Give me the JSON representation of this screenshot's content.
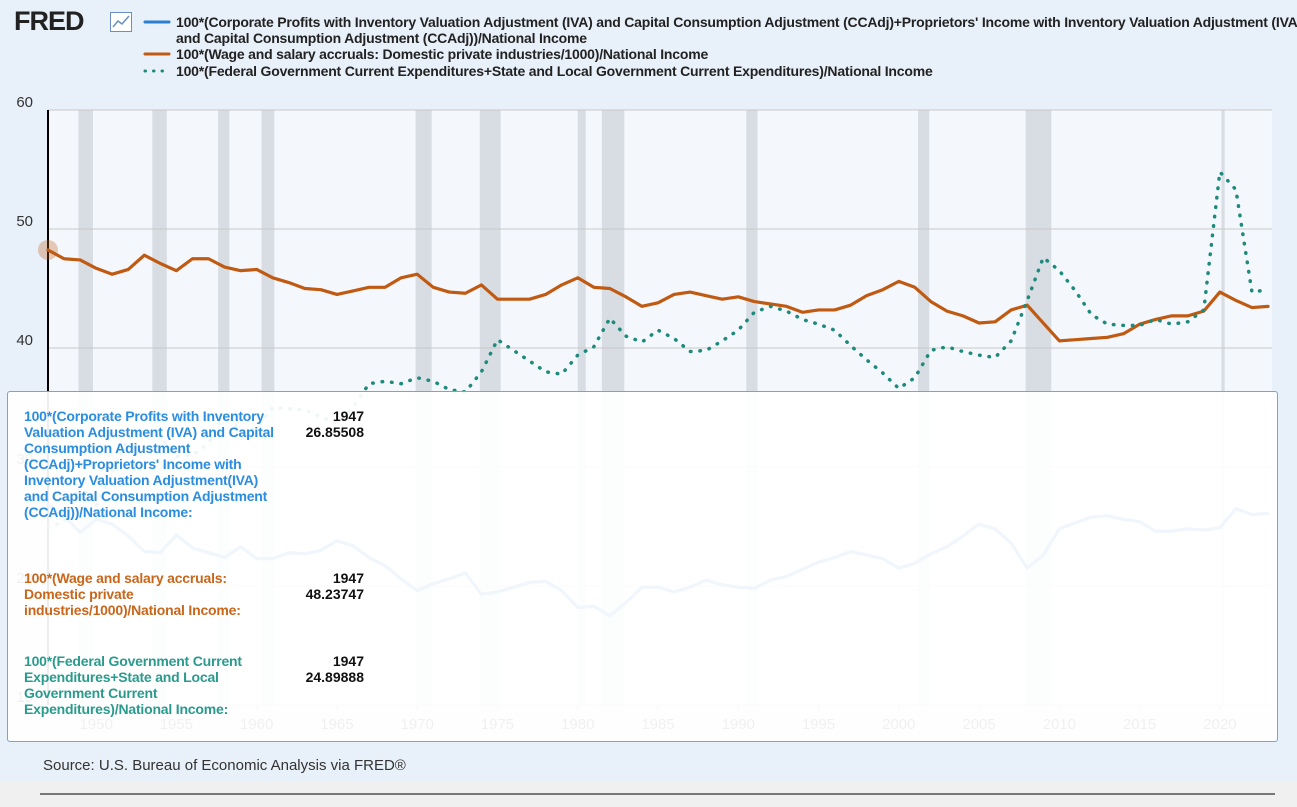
{
  "logo": "FRED",
  "source": "Source: U.S. Bureau of Economic Analysis via FRED®",
  "chart_data": {
    "type": "line",
    "x": [
      1947,
      1948,
      1949,
      1950,
      1951,
      1952,
      1953,
      1954,
      1955,
      1956,
      1957,
      1958,
      1959,
      1960,
      1961,
      1962,
      1963,
      1964,
      1965,
      1966,
      1967,
      1968,
      1969,
      1970,
      1971,
      1972,
      1973,
      1974,
      1975,
      1976,
      1977,
      1978,
      1979,
      1980,
      1981,
      1982,
      1983,
      1984,
      1985,
      1986,
      1987,
      1988,
      1989,
      1990,
      1991,
      1992,
      1993,
      1994,
      1995,
      1996,
      1997,
      1998,
      1999,
      2000,
      2001,
      2002,
      2003,
      2004,
      2005,
      2006,
      2007,
      2008,
      2009,
      2010,
      2011,
      2012,
      2013,
      2014,
      2015,
      2016,
      2017,
      2018,
      2019,
      2020,
      2021,
      2022,
      2023
    ],
    "series": [
      {
        "name": "100*(Corporate Profits with Inventory Valuation Adjustment (IVA) and Capital Consumption Adjustment (CCAdj)+Proprietors' Income with Inventory Valuation Adjustment (IVA) and Capital Consumption Adjustment (CCAdj))/National Income",
        "color": "#2a7fd4",
        "style": "solid",
        "values": [
          26.85508,
          25.9,
          24.5,
          25.6,
          25.2,
          24.2,
          22.9,
          22.8,
          24.3,
          23.2,
          22.8,
          22.4,
          23.3,
          22.3,
          22.3,
          22.8,
          22.7,
          23.0,
          23.8,
          23.4,
          22.4,
          21.7,
          20.6,
          19.6,
          20.2,
          20.6,
          21.1,
          19.3,
          19.5,
          19.9,
          20.3,
          20.4,
          19.6,
          18.2,
          18.3,
          17.5,
          18.6,
          19.9,
          19.9,
          19.5,
          19.9,
          20.5,
          20.1,
          19.9,
          19.8,
          20.5,
          20.8,
          21.4,
          22.0,
          22.4,
          22.9,
          22.6,
          22.3,
          21.5,
          21.9,
          22.7,
          23.3,
          24.2,
          25.2,
          24.8,
          23.6,
          21.5,
          22.6,
          24.8,
          25.3,
          25.8,
          25.9,
          25.6,
          25.4,
          24.6,
          24.6,
          24.8,
          24.7,
          24.9,
          26.5,
          26.0,
          26.1
        ]
      },
      {
        "name": "100*(Wage and salary accruals: Domestic private industries/1000)/National Income",
        "color": "#c05a12",
        "style": "solid",
        "values": [
          48.23747,
          47.5,
          47.4,
          46.7,
          46.2,
          46.6,
          47.8,
          47.1,
          46.5,
          47.5,
          47.5,
          46.8,
          46.5,
          46.6,
          45.9,
          45.5,
          45.0,
          44.9,
          44.5,
          44.8,
          45.1,
          45.1,
          45.9,
          46.2,
          45.1,
          44.7,
          44.6,
          45.3,
          44.1,
          44.1,
          44.1,
          44.5,
          45.3,
          45.9,
          45.1,
          45.0,
          44.3,
          43.5,
          43.8,
          44.5,
          44.7,
          44.4,
          44.1,
          44.3,
          43.9,
          43.7,
          43.5,
          43.0,
          43.2,
          43.2,
          43.6,
          44.4,
          44.9,
          45.6,
          45.1,
          43.9,
          43.1,
          42.7,
          42.1,
          42.2,
          43.2,
          43.6,
          42.1,
          40.6,
          40.7,
          40.8,
          40.9,
          41.2,
          42.0,
          42.4,
          42.7,
          42.7,
          43.1,
          44.7,
          44.0,
          43.4,
          43.5
        ]
      },
      {
        "name": "100*(Federal Government Current Expenditures+State and Local Government Current Expenditures)/National Income",
        "color": "#1e8a7c",
        "style": "dotted",
        "values": [
          24.89888,
          25.4,
          28.5,
          26.7,
          29.6,
          32.4,
          32.8,
          32.5,
          30.9,
          31.0,
          32.0,
          34.5,
          33.0,
          33.3,
          35.0,
          34.9,
          34.8,
          34.2,
          33.7,
          35.0,
          37.0,
          37.2,
          37.0,
          37.5,
          37.2,
          36.5,
          36.3,
          38.0,
          40.7,
          39.8,
          38.9,
          38.0,
          37.8,
          39.4,
          40.1,
          42.5,
          41.0,
          40.5,
          41.5,
          40.8,
          39.7,
          39.8,
          40.6,
          41.5,
          43.0,
          43.5,
          43.1,
          42.4,
          42.0,
          41.5,
          40.2,
          39.0,
          37.9,
          36.6,
          37.5,
          39.8,
          40.1,
          39.7,
          39.4,
          39.2,
          40.6,
          44.0,
          47.6,
          46.5,
          44.8,
          42.8,
          42.0,
          41.9,
          41.9,
          42.4,
          42.0,
          42.2,
          43.2,
          54.8,
          53.3,
          44.7,
          44.9
        ]
      }
    ],
    "xlim": [
      1947,
      2023
    ],
    "xticks": [
      1950,
      1955,
      1960,
      1965,
      1970,
      1975,
      1980,
      1985,
      1990,
      1995,
      2000,
      2005,
      2010,
      2015,
      2020
    ],
    "ylim": [
      10,
      60
    ],
    "yticks": [
      10,
      20,
      30,
      40,
      50,
      60
    ],
    "grid": true,
    "recession_color": "#d7dde3",
    "recessions": [
      [
        1948.9,
        1949.8
      ],
      [
        1953.5,
        1954.4
      ],
      [
        1957.6,
        1958.3
      ],
      [
        1960.3,
        1961.1
      ],
      [
        1969.9,
        1970.9
      ],
      [
        1973.9,
        1975.2
      ],
      [
        1980.0,
        1980.5
      ],
      [
        1981.5,
        1982.9
      ],
      [
        1990.5,
        1991.2
      ],
      [
        2001.2,
        2001.9
      ],
      [
        2007.9,
        2009.5
      ],
      [
        2020.1,
        2020.3
      ]
    ]
  },
  "tooltip": {
    "rows": [
      {
        "label": "100*(Corporate Profits with Inventory Valuation Adjustment (IVA) and Capital Consumption Adjustment (CCAdj)+Proprietors' Income with Inventory Valuation Adjustment(IVA) and Capital Consumption Adjustment (CCAdj))/National Income:"
      },
      {
        "label": "100*(Wage and salary accruals: Domestic private industries/1000)/National Income:"
      },
      {
        "label": "100*(Federal Government Current Expenditures+State and Local Government Current Expenditures)/National Income:"
      }
    ]
  }
}
